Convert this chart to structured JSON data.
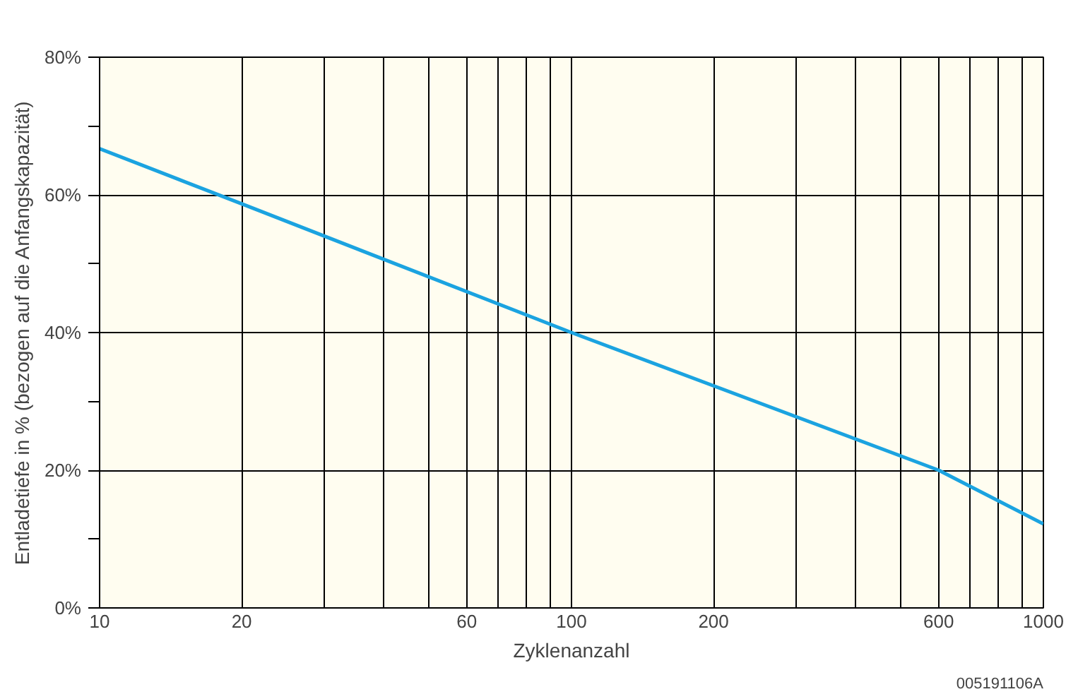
{
  "chart_data": {
    "type": "line",
    "xlabel": "Zyklenanzahl",
    "ylabel": "Entladetiefe in % (bezogen auf die Anfangskapazität)",
    "log": "x",
    "x": [
      10,
      20,
      100,
      600,
      1000
    ],
    "series": [
      {
        "color": "#1ba3e0",
        "values": [
          66.7,
          58.7,
          40,
          20,
          12.2
        ]
      }
    ],
    "xlim": [
      10,
      1000
    ],
    "ylim": [
      0,
      80
    ],
    "xticks": [
      10,
      20,
      {
        "value": 30,
        "label": null
      },
      {
        "value": 40,
        "label": null
      },
      {
        "value": 50,
        "label": null
      },
      60,
      {
        "value": 70,
        "label": null
      },
      {
        "value": 80,
        "label": null
      },
      {
        "value": 90,
        "label": null
      },
      100,
      200,
      {
        "value": 300,
        "label": null
      },
      {
        "value": 400,
        "label": null
      },
      {
        "value": 500,
        "label": null
      },
      600,
      {
        "value": 700,
        "label": null
      },
      {
        "value": 800,
        "label": null
      },
      {
        "value": 900,
        "label": null
      },
      1000
    ],
    "yticks": [
      {
        "value": 0,
        "label": "0%"
      },
      {
        "value": 10,
        "label": null
      },
      {
        "value": 20,
        "label": "20%"
      },
      {
        "value": 30,
        "label": null
      },
      {
        "value": 40,
        "label": "40%"
      },
      {
        "value": 50,
        "label": null
      },
      {
        "value": 60,
        "label": "60%"
      },
      {
        "value": 70,
        "label": null
      },
      {
        "value": 80,
        "label": "80%"
      }
    ],
    "grid": true,
    "marker": "none",
    "line_style": "solid",
    "annotations": [
      "005191106A"
    ]
  }
}
